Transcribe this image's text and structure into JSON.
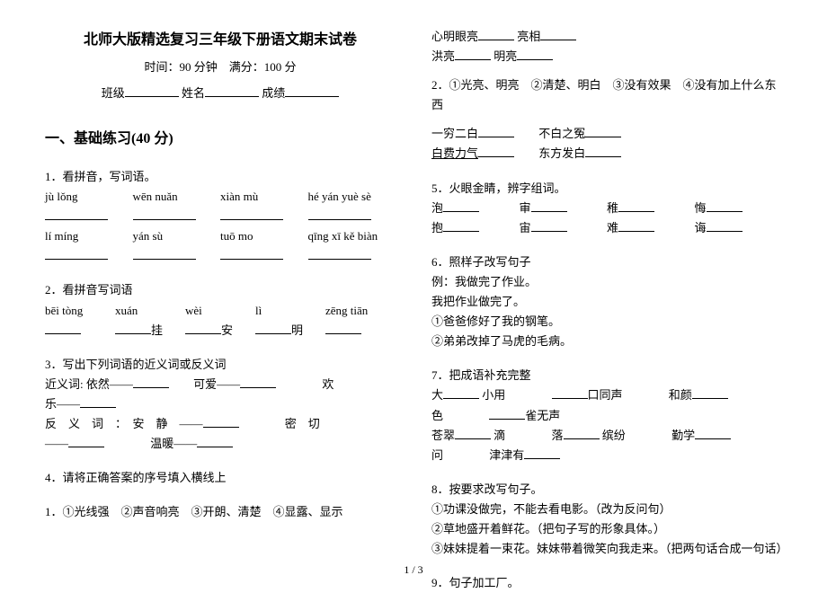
{
  "header": {
    "title": "北师大版精选复习三年级下册语文期末试卷",
    "time_score": "时间：90 分钟　满分：100 分",
    "class_label": "班级",
    "name_label": "姓名",
    "score_label": "成绩"
  },
  "section1": {
    "heading": "一、基础练习(40 分)",
    "q1": {
      "label": "1．看拼音，写词语。",
      "row1": [
        "jù lǒng",
        "wēn nuǎn",
        "xiàn mù",
        "hé yán yuè sè"
      ],
      "row2": [
        "lí míng",
        "yán sù",
        "tuō mo",
        "qīng xī kě biàn"
      ]
    },
    "q2": {
      "label": "2．看拼音写词语",
      "pinyin": [
        "bēi tòng",
        "xuán",
        "wèi",
        "lì",
        "zēng tiān"
      ],
      "suffix1": "挂",
      "suffix2": "安",
      "suffix3": "明"
    },
    "q3": {
      "label": "3．写出下列词语的近义词或反义词",
      "line1a": "近义词: 依然——",
      "line1b": "可爱——",
      "line1c": "欢",
      "line1d": "乐——",
      "line2a": "反　义　词　：　安　静　——",
      "line2b": "密　切",
      "line2c": "——",
      "line2d": "温暖——"
    },
    "q4": {
      "label": "4．请将正确答案的序号填入横线上",
      "opts": "1．①光线强　②声音响亮　③开朗、清楚　④显露、显示"
    },
    "right_top": {
      "l1": "心明眼亮",
      "l2": "亮相",
      "l3": "洪亮",
      "l4": "明亮",
      "opts2": "2．①光亮、明亮　②清楚、明白　③没有效果　④没有加上什么东西",
      "r1a": "一穷二白",
      "r1b": "不白之冤",
      "r2a": "白费力气",
      "r2b": "东方发白"
    },
    "q5": {
      "label": "5．火眼金睛，辨字组词。",
      "row1": [
        "泡",
        "审",
        "稚",
        "悔"
      ],
      "row2": [
        "抱",
        "宙",
        "难",
        "诲"
      ]
    },
    "q6": {
      "label": "6．照样子改写句子",
      "ex": "例：我做完了作业。",
      "ex2": "我把作业做完了。",
      "s1": "①爸爸修好了我的钢笔。",
      "s2": "②弟弟改掉了马虎的毛病。"
    },
    "q7": {
      "label": "7．把成语补充完整",
      "r1": [
        "大",
        "小用",
        "口同声",
        "和颜"
      ],
      "r2": [
        "色",
        "雀无声"
      ],
      "r3": [
        "苍翠",
        "滴",
        "落",
        "缤纷",
        "勤学"
      ],
      "r4": [
        "问",
        "津津有"
      ]
    },
    "q8": {
      "label": "8．按要求改写句子。",
      "s1": "①功课没做完，不能去看电影。（改为反问句）",
      "s2": "②草地盛开着鲜花。（把句子写的形象具体。）",
      "s3": "③妹妹提着一束花。妹妹带着微笑向我走来。（把两句话合成一句话）"
    },
    "q9": {
      "label": "9．句子加工厂。"
    }
  },
  "footer": "1 / 3"
}
